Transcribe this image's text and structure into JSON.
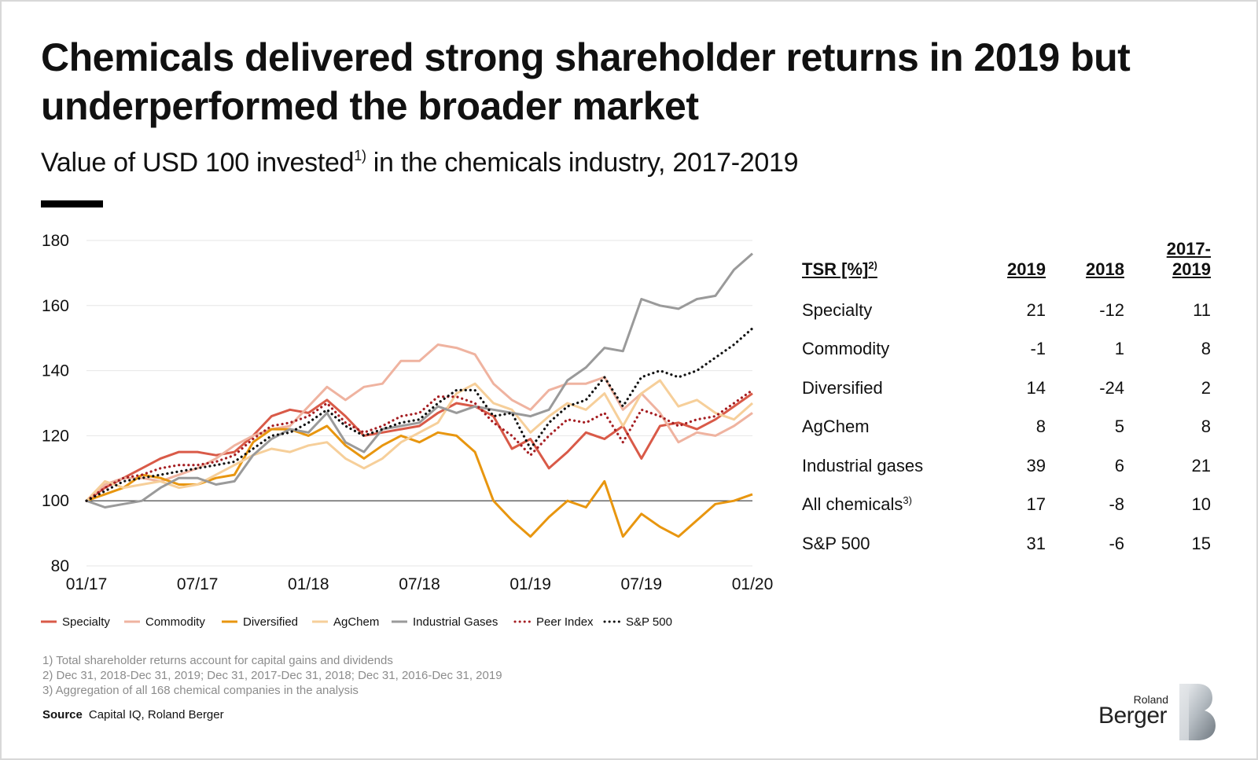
{
  "title": "Chemicals delivered strong shareholder returns in 2019 but underperformed the broader market",
  "subtitle": {
    "before": "Value of USD 100 invested",
    "sup": "1)",
    "after": " in the chemicals industry, 2017-2019"
  },
  "colors": {
    "Specialty": "#d95a48",
    "Commodity": "#efb3a0",
    "Diversified": "#e8960f",
    "AgChem": "#f6cf9a",
    "Industrial Gases": "#9a9a9a",
    "Peer Index": "#a51e22",
    "S&P 500": "#111111"
  },
  "chart_data": {
    "type": "line",
    "xlabel": "",
    "ylabel": "",
    "ylim": [
      80,
      180
    ],
    "yticks": [
      80,
      100,
      120,
      140,
      160,
      180
    ],
    "xticks": [
      "01/17",
      "07/17",
      "01/18",
      "07/18",
      "01/19",
      "07/19",
      "01/20"
    ],
    "xlim": [
      "2017-01",
      "2020-01"
    ],
    "grid": "horizontal",
    "reference_line": 100,
    "x": [
      "2017-01",
      "2017-02",
      "2017-03",
      "2017-04",
      "2017-05",
      "2017-06",
      "2017-07",
      "2017-08",
      "2017-09",
      "2017-10",
      "2017-11",
      "2017-12",
      "2018-01",
      "2018-02",
      "2018-03",
      "2018-04",
      "2018-05",
      "2018-06",
      "2018-07",
      "2018-08",
      "2018-09",
      "2018-10",
      "2018-11",
      "2018-12",
      "2019-01",
      "2019-02",
      "2019-03",
      "2019-04",
      "2019-05",
      "2019-06",
      "2019-07",
      "2019-08",
      "2019-09",
      "2019-10",
      "2019-11",
      "2019-12",
      "2020-01"
    ],
    "series": [
      {
        "name": "Specialty",
        "style": "solid",
        "values": [
          100,
          104,
          107,
          110,
          113,
          115,
          115,
          114,
          115,
          120,
          126,
          128,
          127,
          131,
          126,
          120,
          121,
          122,
          123,
          127,
          130,
          129,
          126,
          116,
          119,
          110,
          115,
          121,
          119,
          123,
          113,
          123,
          124,
          122,
          125,
          129,
          133
        ]
      },
      {
        "name": "Commodity",
        "style": "solid",
        "values": [
          100,
          105,
          107,
          107,
          106,
          108,
          110,
          113,
          117,
          120,
          122,
          123,
          129,
          135,
          131,
          135,
          136,
          143,
          143,
          148,
          147,
          145,
          136,
          131,
          128,
          134,
          136,
          136,
          138,
          128,
          133,
          127,
          118,
          121,
          120,
          123,
          127
        ]
      },
      {
        "name": "Diversified",
        "style": "solid",
        "values": [
          100,
          102,
          104,
          108,
          107,
          105,
          105,
          107,
          108,
          118,
          122,
          122,
          120,
          123,
          117,
          113,
          117,
          120,
          118,
          121,
          120,
          115,
          100,
          94,
          89,
          95,
          100,
          98,
          106,
          89,
          96,
          92,
          89,
          94,
          99,
          100,
          102
        ]
      },
      {
        "name": "AgChem",
        "style": "solid",
        "values": [
          100,
          106,
          104,
          105,
          106,
          104,
          105,
          108,
          111,
          114,
          116,
          115,
          117,
          118,
          113,
          110,
          113,
          118,
          121,
          124,
          133,
          136,
          130,
          128,
          121,
          126,
          130,
          128,
          133,
          123,
          133,
          137,
          129,
          131,
          127,
          125,
          130
        ]
      },
      {
        "name": "Industrial Gases",
        "style": "solid",
        "values": [
          100,
          98,
          99,
          100,
          104,
          107,
          107,
          105,
          106,
          114,
          119,
          122,
          121,
          127,
          118,
          115,
          122,
          123,
          124,
          129,
          127,
          129,
          128,
          127,
          126,
          128,
          137,
          141,
          147,
          146,
          162,
          160,
          159,
          162,
          163,
          171,
          176
        ]
      },
      {
        "name": "Peer Index",
        "style": "dotted",
        "values": [
          100,
          104,
          107,
          108,
          110,
          111,
          111,
          112,
          114,
          119,
          123,
          124,
          126,
          130,
          124,
          121,
          123,
          126,
          127,
          132,
          132,
          130,
          124,
          120,
          114,
          120,
          125,
          124,
          127,
          118,
          128,
          126,
          123,
          125,
          126,
          130,
          134
        ]
      },
      {
        "name": "S&P 500",
        "style": "dotted",
        "values": [
          100,
          103,
          106,
          107,
          108,
          109,
          110,
          111,
          112,
          116,
          120,
          121,
          124,
          128,
          123,
          120,
          122,
          124,
          125,
          130,
          134,
          134,
          126,
          127,
          116,
          124,
          129,
          131,
          138,
          129,
          138,
          140,
          138,
          140,
          144,
          148,
          153
        ]
      }
    ]
  },
  "legend": [
    "Specialty",
    "Commodity",
    "Diversified",
    "AgChem",
    "Industrial Gases",
    "Peer Index",
    "S&P 500"
  ],
  "tsr_table": {
    "header": {
      "label": "TSR [%]",
      "label_sup": "2)",
      "col1": "2019",
      "col2": "2018",
      "col3_line1": "2017-",
      "col3_line2": "2019"
    },
    "rows": [
      {
        "label": "Specialty",
        "sup": "",
        "v2019": "21",
        "v2018": "-12",
        "v1719": "11"
      },
      {
        "label": "Commodity",
        "sup": "",
        "v2019": "-1",
        "v2018": "1",
        "v1719": "8"
      },
      {
        "label": "Diversified",
        "sup": "",
        "v2019": "14",
        "v2018": "-24",
        "v1719": "2"
      },
      {
        "label": "AgChem",
        "sup": "",
        "v2019": "8",
        "v2018": "5",
        "v1719": "8"
      },
      {
        "label": "Industrial gases",
        "sup": "",
        "v2019": "39",
        "v2018": "6",
        "v1719": "21"
      },
      {
        "label": "All chemicals",
        "sup": "3)",
        "v2019": "17",
        "v2018": "-8",
        "v1719": "10"
      },
      {
        "label": "S&P 500",
        "sup": "",
        "v2019": "31",
        "v2018": "-6",
        "v1719": "15"
      }
    ]
  },
  "footnotes": [
    "1) Total shareholder returns account for capital gains and dividends",
    "2) Dec 31, 2018-Dec 31, 2019; Dec 31, 2017-Dec 31, 2018; Dec 31, 2016-Dec 31, 2019",
    "3) Aggregation of all 168 chemical companies in the analysis"
  ],
  "source": {
    "label": "Source",
    "text": "Capital IQ, Roland Berger"
  },
  "logo": {
    "line1": "Roland",
    "line2": "Berger"
  }
}
